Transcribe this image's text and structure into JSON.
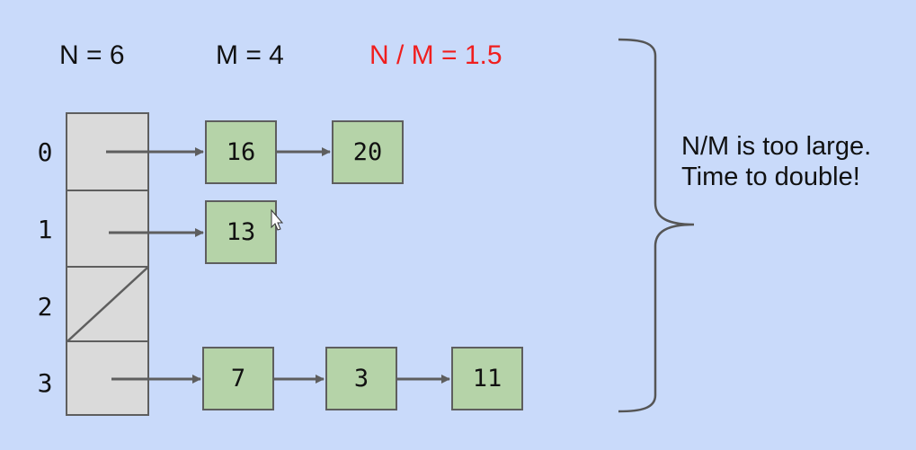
{
  "stats": {
    "n_label": "N = 6",
    "m_label": "M = 4",
    "ratio_label": "N / M = 1.5"
  },
  "buckets": [
    {
      "index": "0",
      "nodes": [
        "16",
        "20"
      ],
      "empty": false
    },
    {
      "index": "1",
      "nodes": [
        "13"
      ],
      "empty": false
    },
    {
      "index": "2",
      "nodes": [],
      "empty": true
    },
    {
      "index": "3",
      "nodes": [
        "7",
        "3",
        "11"
      ],
      "empty": false
    }
  ],
  "note": {
    "line1": "N/M is too large.",
    "line2": "Time to double!"
  },
  "colors": {
    "background": "#c9dafa",
    "node_fill": "#b5d3a8",
    "bucket_fill": "#dadada",
    "stroke": "#5e5e5e",
    "highlight": "#f01e1e"
  }
}
